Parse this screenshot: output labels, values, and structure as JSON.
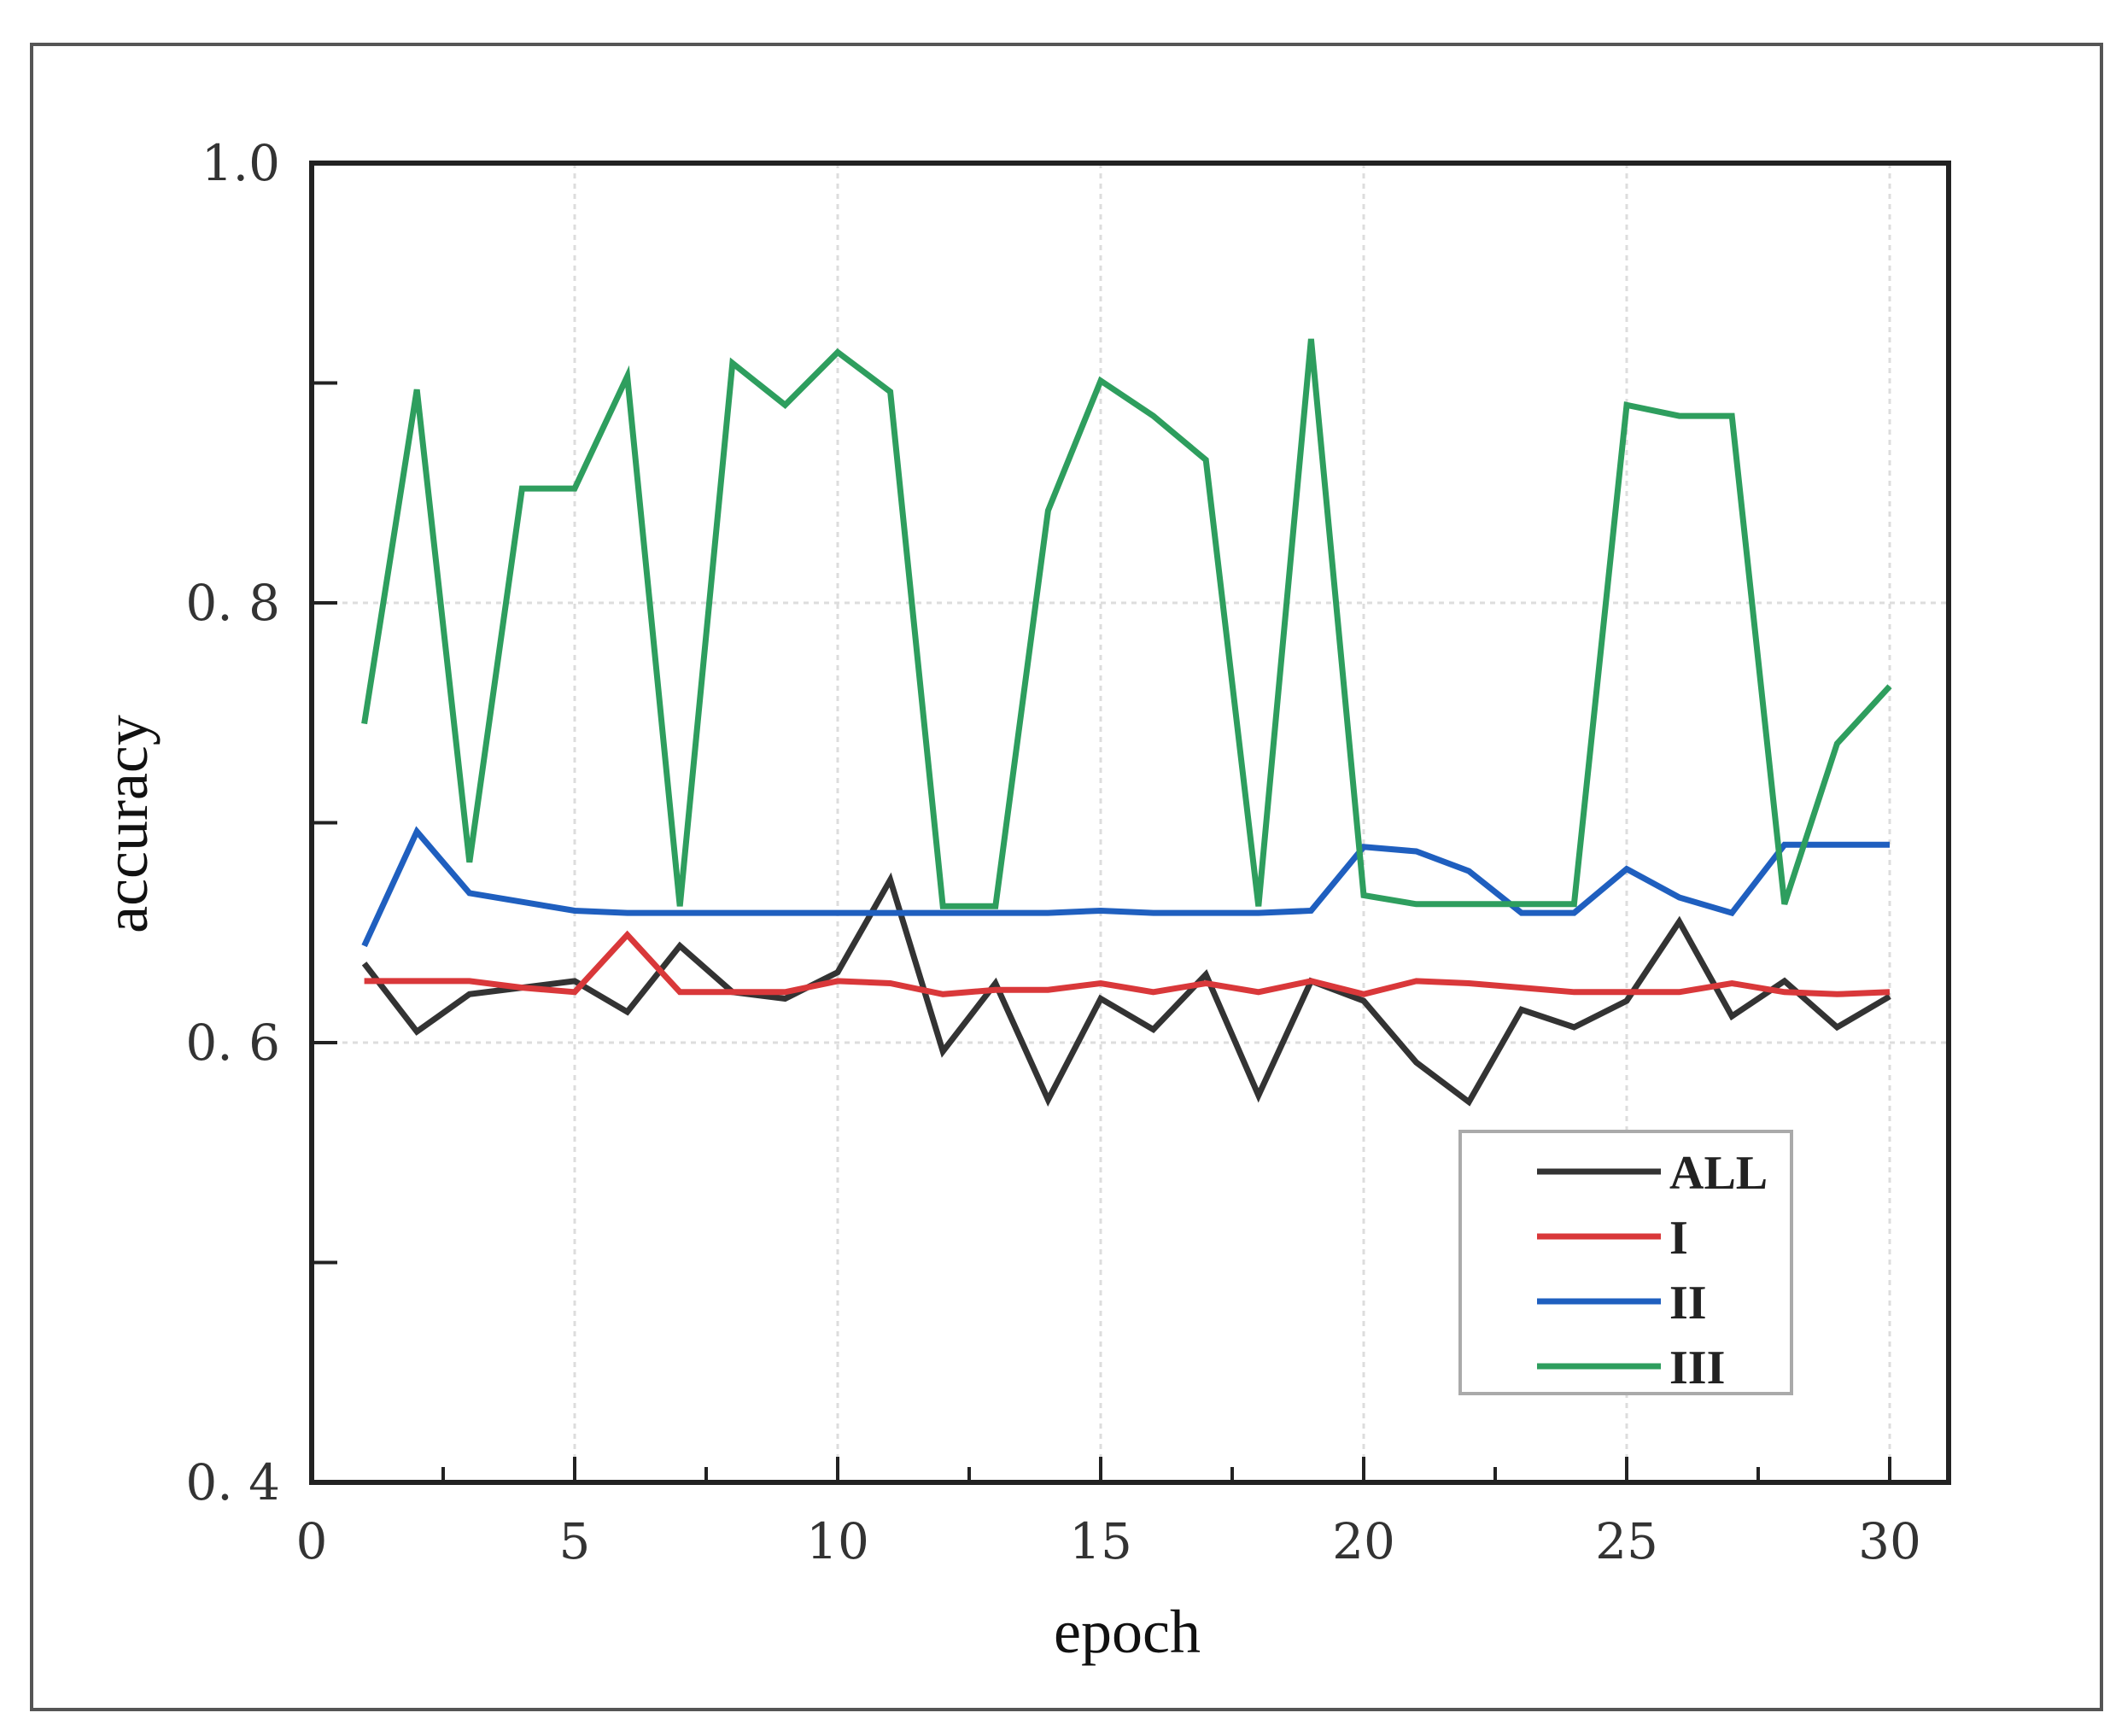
{
  "chart_data": {
    "type": "line",
    "title": "",
    "xlabel": "epoch",
    "ylabel": "accuracy",
    "xlim": [
      0,
      31
    ],
    "ylim": [
      0.4,
      1.0
    ],
    "x_ticks": [
      0,
      5,
      10,
      15,
      20,
      25,
      30
    ],
    "x_tick_labels": [
      "0",
      "5",
      "10",
      "15",
      "20",
      "25",
      "30"
    ],
    "y_ticks": [
      0.4,
      0.6,
      0.8,
      1.0
    ],
    "y_tick_labels": [
      "0. 4",
      "0. 6",
      "0. 8",
      "1.0"
    ],
    "y_minor_ticks": [
      0.5,
      0.7,
      0.9
    ],
    "grid": true,
    "legend_position": "lower right (inside axes)",
    "x": [
      1,
      2,
      3,
      4,
      5,
      6,
      7,
      8,
      9,
      10,
      11,
      12,
      13,
      14,
      15,
      16,
      17,
      18,
      19,
      20,
      21,
      22,
      23,
      24,
      25,
      26,
      27,
      28,
      29,
      30
    ],
    "series": [
      {
        "name": "ALL",
        "color": "#333333",
        "values": [
          0.636,
          0.605,
          0.622,
          0.625,
          0.628,
          0.614,
          0.644,
          0.623,
          0.62,
          0.632,
          0.674,
          0.596,
          0.627,
          0.574,
          0.62,
          0.606,
          0.631,
          0.576,
          0.628,
          0.619,
          0.591,
          0.573,
          0.615,
          0.607,
          0.619,
          0.655,
          0.612,
          0.628,
          0.607,
          0.621
        ]
      },
      {
        "name": "I",
        "color": "#d9383a",
        "values": [
          0.628,
          0.628,
          0.628,
          0.625,
          0.623,
          0.649,
          0.623,
          0.623,
          0.623,
          0.628,
          0.627,
          0.622,
          0.624,
          0.624,
          0.627,
          0.623,
          0.627,
          0.623,
          0.628,
          0.622,
          0.628,
          0.627,
          0.625,
          0.623,
          0.623,
          0.623,
          0.627,
          0.623,
          0.622,
          0.623
        ]
      },
      {
        "name": "II",
        "color": "#1f5fbf",
        "values": [
          0.644,
          0.696,
          0.668,
          0.664,
          0.66,
          0.659,
          0.659,
          0.659,
          0.659,
          0.659,
          0.659,
          0.659,
          0.659,
          0.659,
          0.66,
          0.659,
          0.659,
          0.659,
          0.66,
          0.689,
          0.687,
          0.678,
          0.659,
          0.659,
          0.679,
          0.666,
          0.659,
          0.69,
          0.69,
          0.69
        ]
      },
      {
        "name": "III",
        "color": "#2e9e5e",
        "values": [
          0.745,
          0.897,
          0.682,
          0.852,
          0.852,
          0.903,
          0.662,
          0.909,
          0.89,
          0.914,
          0.896,
          0.662,
          0.662,
          0.842,
          0.901,
          0.885,
          0.865,
          0.662,
          0.92,
          0.667,
          0.663,
          0.663,
          0.663,
          0.663,
          0.89,
          0.885,
          0.885,
          0.663,
          0.736,
          0.762
        ]
      }
    ]
  },
  "legend": {
    "items": [
      {
        "label": "ALL",
        "color": "#333333"
      },
      {
        "label": "I",
        "color": "#d9383a"
      },
      {
        "label": "II",
        "color": "#1f5fbf"
      },
      {
        "label": "III",
        "color": "#2e9e5e"
      }
    ]
  }
}
